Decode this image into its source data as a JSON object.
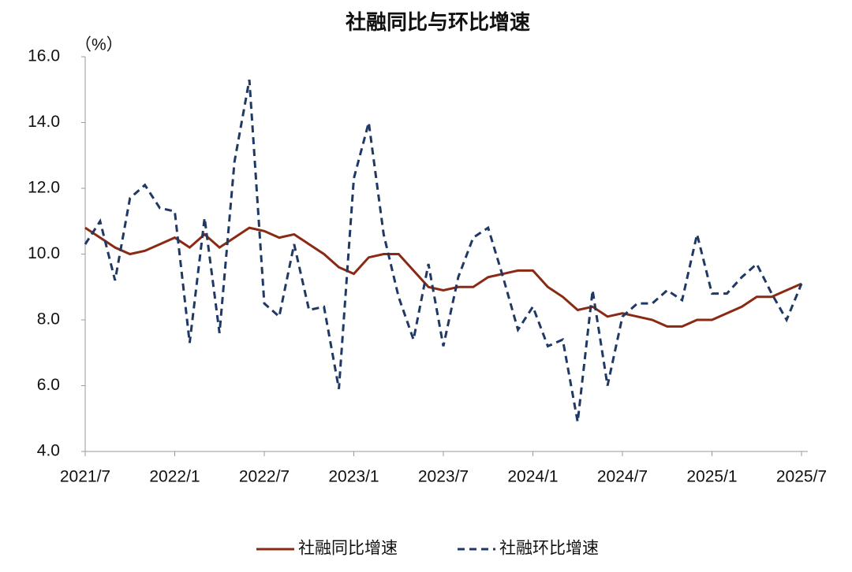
{
  "chart_data": {
    "type": "line",
    "title": "社融同比与环比增速",
    "y_unit": "（%）",
    "categories": [
      "2021/7",
      null,
      null,
      null,
      null,
      null,
      "2022/1",
      null,
      null,
      null,
      null,
      null,
      "2022/7",
      null,
      null,
      null,
      null,
      null,
      "2023/1",
      null,
      null,
      null,
      null,
      null,
      "2023/7",
      null,
      null,
      null,
      null,
      null,
      "2024/1",
      null,
      null,
      null,
      null,
      null,
      "2024/7",
      null,
      null,
      null,
      null,
      null,
      "2025/1",
      null,
      null,
      null,
      null,
      null,
      "2025/7"
    ],
    "series": [
      {
        "name": "社融同比增速",
        "color": "#8b2a14",
        "dash": false,
        "values": [
          10.8,
          10.5,
          10.2,
          10.0,
          10.1,
          10.3,
          10.5,
          10.2,
          10.6,
          10.2,
          10.5,
          10.8,
          10.7,
          10.5,
          10.6,
          10.3,
          10.0,
          9.6,
          9.4,
          9.9,
          10.0,
          10.0,
          9.5,
          9.0,
          8.9,
          9.0,
          9.0,
          9.3,
          9.4,
          9.5,
          9.5,
          9.0,
          8.7,
          8.3,
          8.4,
          8.1,
          8.2,
          8.1,
          8.0,
          7.8,
          7.8,
          8.0,
          8.0,
          8.2,
          8.4,
          8.7,
          8.7,
          8.9,
          9.1
        ]
      },
      {
        "name": "社融环比增速",
        "color": "#1f3864",
        "dash": true,
        "values": [
          10.3,
          11.0,
          9.2,
          11.7,
          12.1,
          11.4,
          11.3,
          7.3,
          11.1,
          7.6,
          12.8,
          15.3,
          8.5,
          8.1,
          10.3,
          8.3,
          8.4,
          5.9,
          12.3,
          14.0,
          10.6,
          8.7,
          7.4,
          9.7,
          7.2,
          9.3,
          10.5,
          10.8,
          9.3,
          7.7,
          8.4,
          7.2,
          7.4,
          4.9,
          8.9,
          6.0,
          8.1,
          8.5,
          8.5,
          8.9,
          8.6,
          10.6,
          8.8,
          8.8,
          9.3,
          9.7,
          8.8,
          8.0,
          9.1
        ]
      }
    ],
    "ylim": [
      4,
      16
    ],
    "yticks": [
      {
        "value": 4,
        "label": "4.0"
      },
      {
        "value": 6,
        "label": "6.0"
      },
      {
        "value": 8,
        "label": "8.0"
      },
      {
        "value": 10,
        "label": "10.0"
      },
      {
        "value": 12,
        "label": "12.0"
      },
      {
        "value": 14,
        "label": "14.0"
      },
      {
        "value": 16,
        "label": "16.0"
      }
    ]
  }
}
